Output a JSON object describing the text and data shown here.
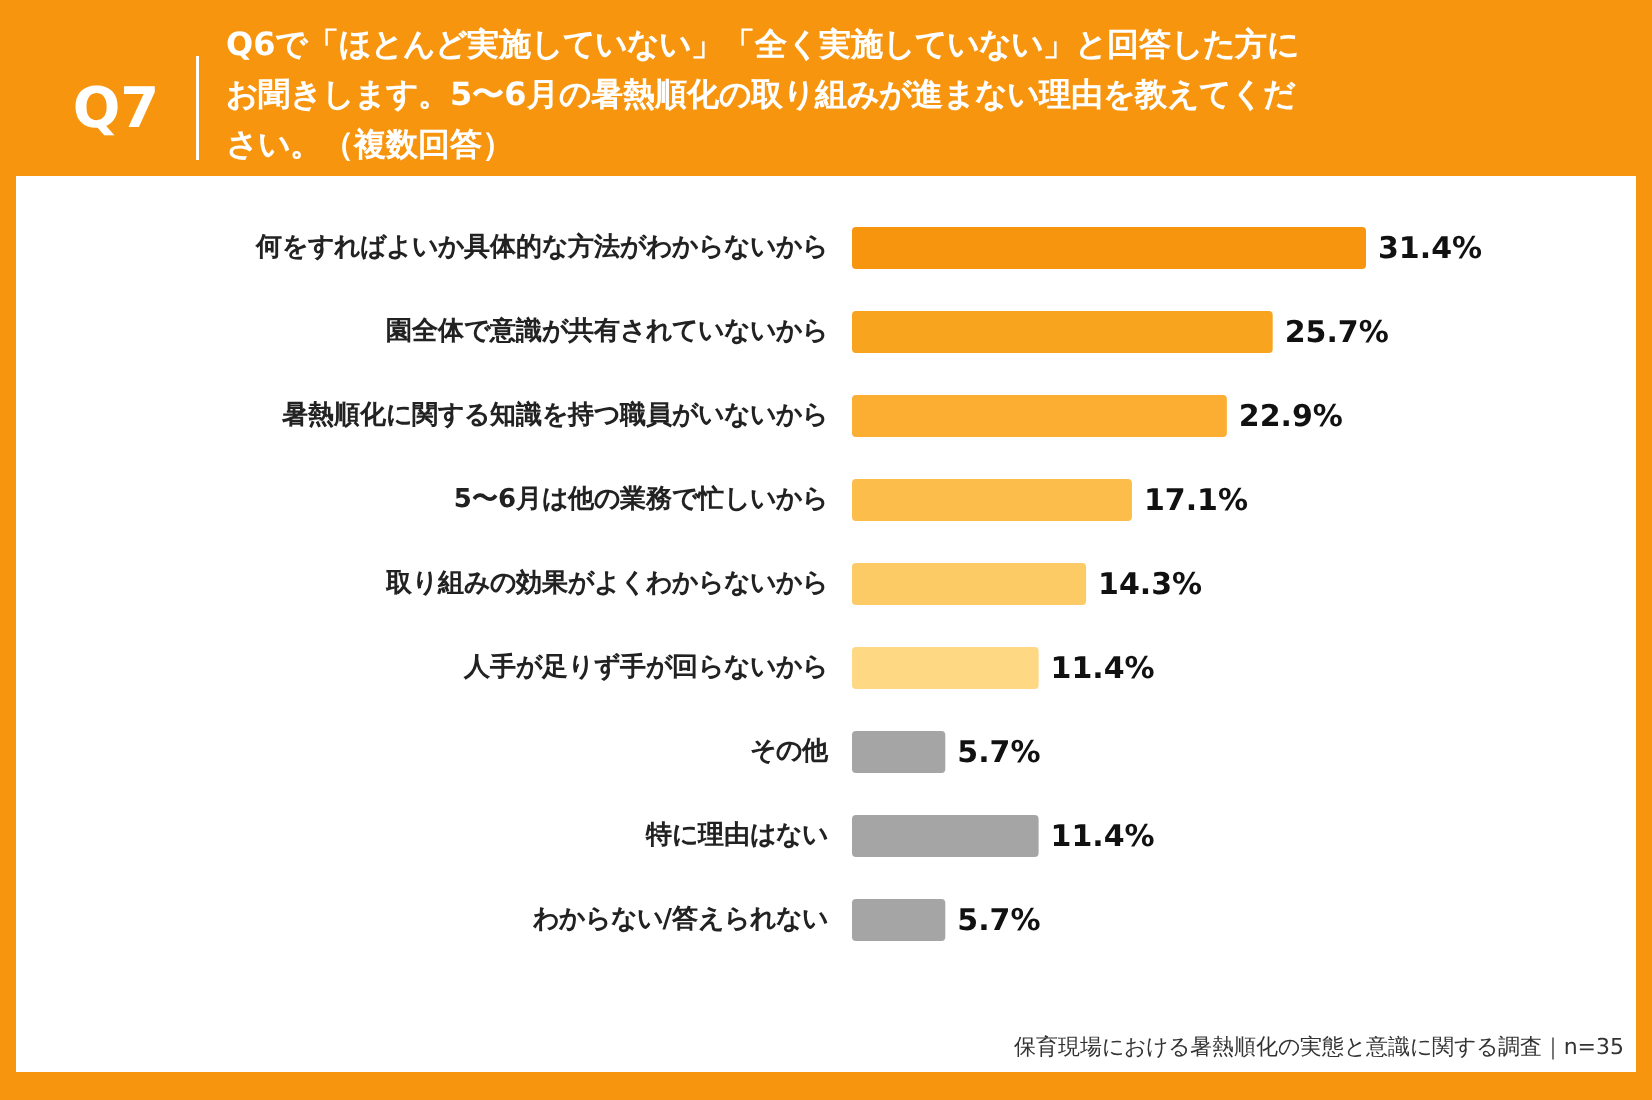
{
  "chart_data": {
    "type": "bar",
    "orientation": "horizontal",
    "title": "Q7",
    "subtitle": "Q6で「ほとんど実施していない」「全く実施していない」と回答した方にお聞きします。5〜6月の暑熱順化の取り組みが進まない理由を教えてください。（複数回答）",
    "categories": [
      "何をすればよいか具体的な方法がわからないから",
      "園全体で意識が共有されていないから",
      "暑熱順化に関する知識を持つ職員がいないから",
      "5〜6月は他の業務で忙しいから",
      "取り組みの効果がよくわからないから",
      "人手が足りず手が回らないから",
      "その他",
      "特に理由はない",
      "わからない/答えられない"
    ],
    "values": [
      31.4,
      25.7,
      22.9,
      17.1,
      14.3,
      11.4,
      5.7,
      11.4,
      5.7
    ],
    "colors": [
      "#f7950f",
      "#f9a41f",
      "#fbae32",
      "#fcbd4b",
      "#fdcb66",
      "#fed882",
      "#a5a5a5",
      "#a5a5a5",
      "#a5a5a5"
    ],
    "value_labels": [
      "31.4%",
      "25.7%",
      "22.9%",
      "17.1%",
      "14.3%",
      "11.4%",
      "5.7%",
      "11.4%",
      "5.7%"
    ],
    "annotations": [
      "保育現場における暑熱順化の実態と意識に関する調査｜n=35"
    ]
  }
}
